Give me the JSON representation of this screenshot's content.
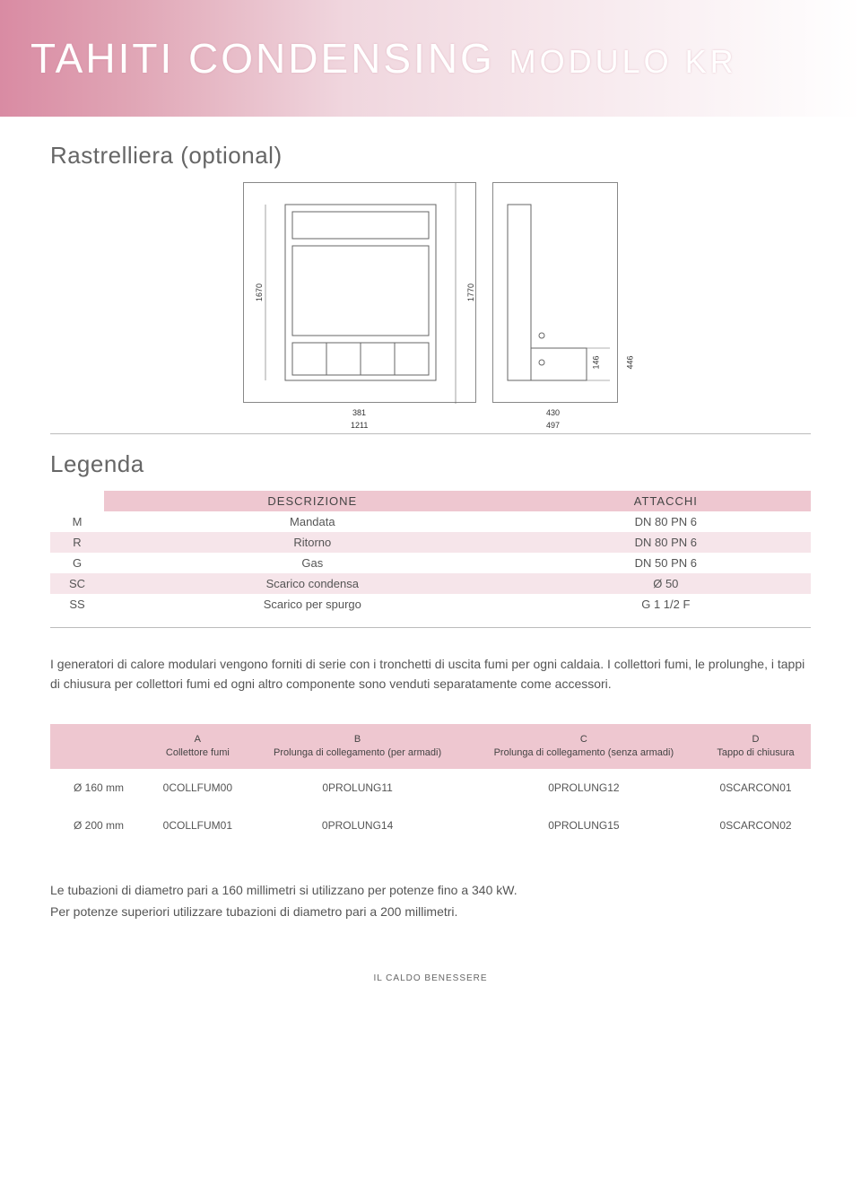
{
  "header": {
    "title_main": "TAHITI CONDENSING",
    "title_sub": "MODULO KR"
  },
  "section_rack": "Rastrelliera (optional)",
  "diagram": {
    "front": {
      "height_inner": "1670",
      "height_outer": "1770",
      "width_inner": "381",
      "width_outer": "1211"
    },
    "side": {
      "width_top": "430",
      "width_bottom": "497",
      "depth_a": "146",
      "depth_b": "446"
    },
    "stroke_color": "#666666",
    "paper_border": "#888888"
  },
  "section_legend": "Legenda",
  "legend_table": {
    "headers": [
      "",
      "DESCRIZIONE",
      "ATTACCHI"
    ],
    "rows": [
      {
        "code": "M",
        "desc": "Mandata",
        "att": "DN 80 PN 6",
        "alt": false
      },
      {
        "code": "R",
        "desc": "Ritorno",
        "att": "DN 80 PN 6",
        "alt": true
      },
      {
        "code": "G",
        "desc": "Gas",
        "att": "DN 50 PN 6",
        "alt": false
      },
      {
        "code": "SC",
        "desc": "Scarico condensa",
        "att": "Ø 50",
        "alt": true
      },
      {
        "code": "SS",
        "desc": "Scarico per spurgo",
        "att": "G 1 1/2 F",
        "alt": false
      }
    ]
  },
  "body_paragraph": "I generatori di calore modulari vengono forniti di serie con i tronchetti di uscita fumi per ogni caldaia. I collettori fumi, le prolunghe, i tappi di chiusura per collettori fumi ed ogni altro componente sono venduti separatamente come accessori.",
  "parts_table": {
    "headers": [
      {
        "t1": "",
        "t2": ""
      },
      {
        "t1": "A",
        "t2": "Collettore fumi"
      },
      {
        "t1": "B",
        "t2": "Prolunga di collegamento (per armadi)"
      },
      {
        "t1": "C",
        "t2": "Prolunga di collegamento (senza armadi)"
      },
      {
        "t1": "D",
        "t2": "Tappo di chiusura"
      }
    ],
    "rows": [
      [
        "Ø 160 mm",
        "0COLLFUM00",
        "0PROLUNG11",
        "0PROLUNG12",
        "0SCARCON01"
      ],
      [
        "Ø 200 mm",
        "0COLLFUM01",
        "0PROLUNG14",
        "0PROLUNG15",
        "0SCARCON02"
      ]
    ]
  },
  "footer_para_1": "Le tubazioni di diametro pari a 160 millimetri si utilizzano per potenze fino a 340 kW.",
  "footer_para_2": "Per potenze superiori utilizzare tubazioni di diametro pari a 200 millimetri.",
  "page_footer": "IL CALDO BENESSERE",
  "colors": {
    "header_pink": "#d98ba3",
    "row_pink": "#eec7d0",
    "row_pink_lt": "#f6e5ea",
    "text": "#555555"
  }
}
